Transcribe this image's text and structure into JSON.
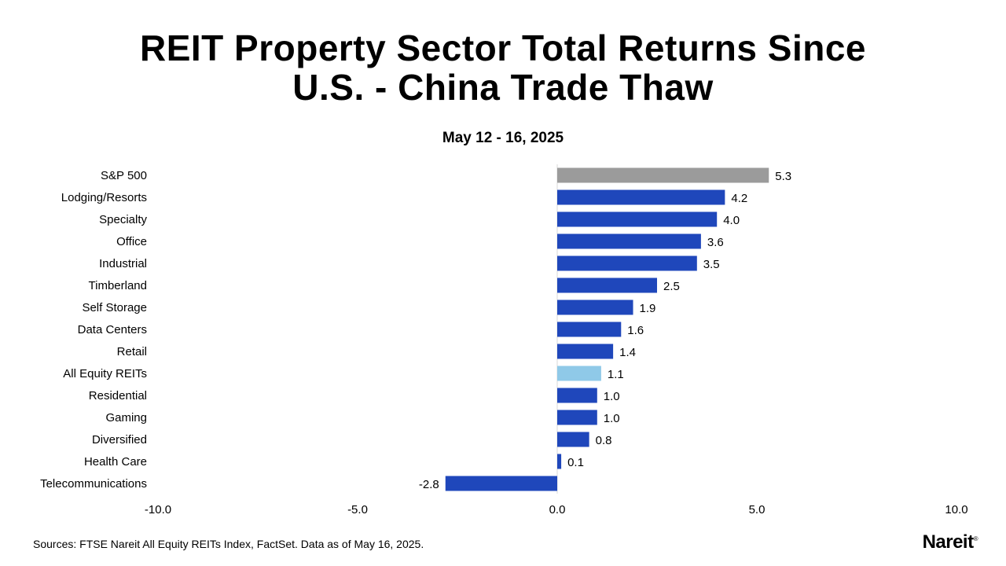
{
  "title_line1": "REIT Property Sector Total Returns Since",
  "title_line2": "U.S. - China Trade Thaw",
  "subtitle": "May 12 - 16, 2025",
  "source": "Sources: FTSE Nareit All Equity REITs Index, FactSet. Data as of May 16, 2025.",
  "logo_text": "Nareit",
  "colors": {
    "benchmark": "#9b9b9b",
    "sector": "#1f47bb",
    "all_equity": "#8fc9e8"
  },
  "chart_data": {
    "type": "bar",
    "orientation": "horizontal",
    "categories": [
      "S&P 500",
      "Lodging/Resorts",
      "Specialty",
      "Office",
      "Industrial",
      "Timberland",
      "Self Storage",
      "Data Centers",
      "Retail",
      "All Equity REITs",
      "Residential",
      "Gaming",
      "Diversified",
      "Health Care",
      "Telecommunications"
    ],
    "values": [
      5.3,
      4.2,
      4.0,
      3.6,
      3.5,
      2.5,
      1.9,
      1.6,
      1.4,
      1.1,
      1.0,
      1.0,
      0.8,
      0.1,
      -2.8
    ],
    "value_labels": [
      "5.3",
      "4.2",
      "4.0",
      "3.6",
      "3.5",
      "2.5",
      "1.9",
      "1.6",
      "1.4",
      "1.1",
      "1.0",
      "1.0",
      "0.8",
      "0.1",
      "-2.8"
    ],
    "bar_color_keys": [
      "benchmark",
      "sector",
      "sector",
      "sector",
      "sector",
      "sector",
      "sector",
      "sector",
      "sector",
      "all_equity",
      "sector",
      "sector",
      "sector",
      "sector",
      "sector"
    ],
    "xlim": [
      -10,
      10
    ],
    "xticks": [
      -10,
      -5,
      0,
      5,
      10
    ],
    "xtick_labels": [
      "-10.0",
      "-5.0",
      "0.0",
      "5.0",
      "10.0"
    ],
    "grid": false,
    "legend": "none"
  }
}
